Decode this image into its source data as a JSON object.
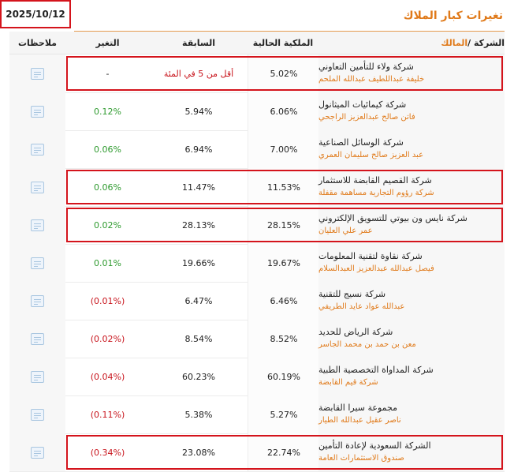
{
  "date": "2025/10/12",
  "title": "تغيرات كبار الملاك",
  "headers": {
    "company_prefix": "الشركة / ",
    "owner_word": "المالك",
    "current": "الملكية الحالية",
    "previous": "السابقة",
    "change": "التغير",
    "notes": "ملاحظات"
  },
  "rows": [
    {
      "company": "شركة ولاء للتأمين التعاوني",
      "owner": "خليفة عبداللطيف عبدالله الملحم",
      "current": "5.02%",
      "previous": "أقل من 5 في المئة",
      "change": "-",
      "change_type": "neutral",
      "prev_red": true,
      "highlighted": true
    },
    {
      "company": "شركة كيمائيات الميثانول",
      "owner": "فاتن صالح عبدالعزيز الراجحي",
      "current": "6.06%",
      "previous": "5.94%",
      "change": "0.12%",
      "change_type": "pos",
      "prev_red": false,
      "highlighted": false
    },
    {
      "company": "شركة الوسائل الصناعية",
      "owner": "عبد العزيز صالح سليمان العمري",
      "current": "7.00%",
      "previous": "6.94%",
      "change": "0.06%",
      "change_type": "pos",
      "prev_red": false,
      "highlighted": false
    },
    {
      "company": "شركة القصيم القابضة للاستثمار",
      "owner": "شركة رؤوم التجارية مساهمة مقفلة",
      "current": "11.53%",
      "previous": "11.47%",
      "change": "0.06%",
      "change_type": "pos",
      "prev_red": false,
      "highlighted": true
    },
    {
      "company": "شركة نايس ون بيوتي للتسويق الإلكتروني",
      "owner": "عمر علي العليان",
      "current": "28.15%",
      "previous": "28.13%",
      "change": "0.02%",
      "change_type": "pos",
      "prev_red": false,
      "highlighted": true
    },
    {
      "company": "شركة نقاوة لتقنية المعلومات",
      "owner": "فيصل عبدالله عبدالعزيز العبدالسلام",
      "current": "19.67%",
      "previous": "19.66%",
      "change": "0.01%",
      "change_type": "pos",
      "prev_red": false,
      "highlighted": false
    },
    {
      "company": "شركة نسيج للتقنية",
      "owner": "عبدالله عواد عايد الطريفي",
      "current": "6.46%",
      "previous": "6.47%",
      "change": "(0.01%)",
      "change_type": "neg",
      "prev_red": false,
      "highlighted": false
    },
    {
      "company": "شركة الرياض للحديد",
      "owner": "معن بن حمد بن محمد الجاسر",
      "current": "8.52%",
      "previous": "8.54%",
      "change": "(0.02%)",
      "change_type": "neg",
      "prev_red": false,
      "highlighted": false
    },
    {
      "company": "شركة المداواة التخصصية الطبية",
      "owner": "شركة قيم القابضة",
      "current": "60.19%",
      "previous": "60.23%",
      "change": "(0.04%)",
      "change_type": "neg",
      "prev_red": false,
      "highlighted": false
    },
    {
      "company": "مجموعة سيرا القابضة",
      "owner": "ناصر عقيل عبدالله الطيار",
      "current": "5.27%",
      "previous": "5.38%",
      "change": "(0.11%)",
      "change_type": "neg",
      "prev_red": false,
      "highlighted": false
    },
    {
      "company": "الشركة السعودية لإعادة التأمين",
      "owner": "صندوق الاستثمارات العامة",
      "current": "22.74%",
      "previous": "23.08%",
      "change": "(0.34%)",
      "change_type": "neg",
      "prev_red": false,
      "highlighted": true
    }
  ]
}
